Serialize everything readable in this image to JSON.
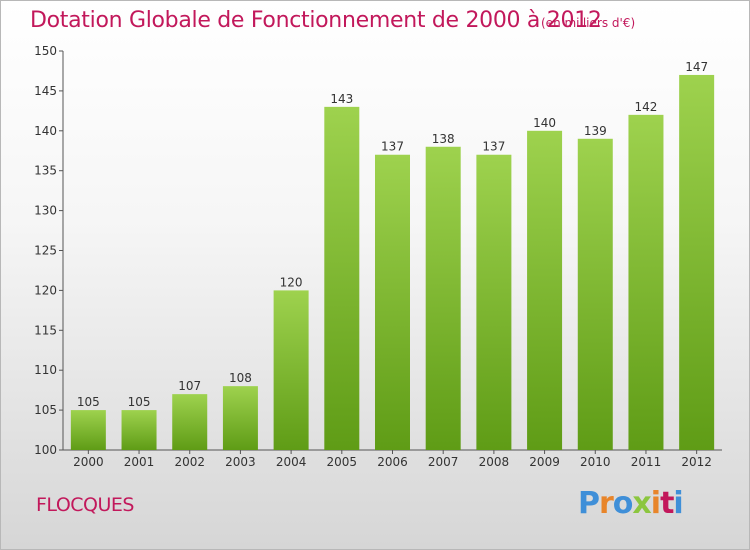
{
  "header": {
    "title": "Dotation Globale de Fonctionnement de 2000 à 2012",
    "subtitle": "(en milliers d'€)"
  },
  "footer": {
    "commune": "FLOCQUES",
    "brand": {
      "letters": [
        "P",
        "r",
        "o",
        "x",
        "i",
        "t",
        "i"
      ],
      "colors": [
        "#3f8fd8",
        "#e8852a",
        "#3f8fd8",
        "#8cc63f",
        "#e8852a",
        "#c2185b",
        "#3f8fd8"
      ]
    }
  },
  "chart_data": {
    "type": "bar",
    "categories": [
      "2000",
      "2001",
      "2002",
      "2003",
      "2004",
      "2005",
      "2006",
      "2007",
      "2008",
      "2009",
      "2010",
      "2011",
      "2012"
    ],
    "values": [
      105,
      105,
      107,
      108,
      120,
      143,
      137,
      138,
      137,
      140,
      139,
      142,
      147
    ],
    "title": "Dotation Globale de Fonctionnement de 2000 à 2012",
    "ylim": [
      100,
      150
    ],
    "yticks": [
      100,
      105,
      110,
      115,
      120,
      125,
      130,
      135,
      140,
      145,
      150
    ],
    "grid": false,
    "legend": "none",
    "colors": {
      "bar_top": "#9ed24e",
      "bar_bottom": "#5f9c16",
      "axis": "#555555",
      "text": "#333333"
    }
  }
}
